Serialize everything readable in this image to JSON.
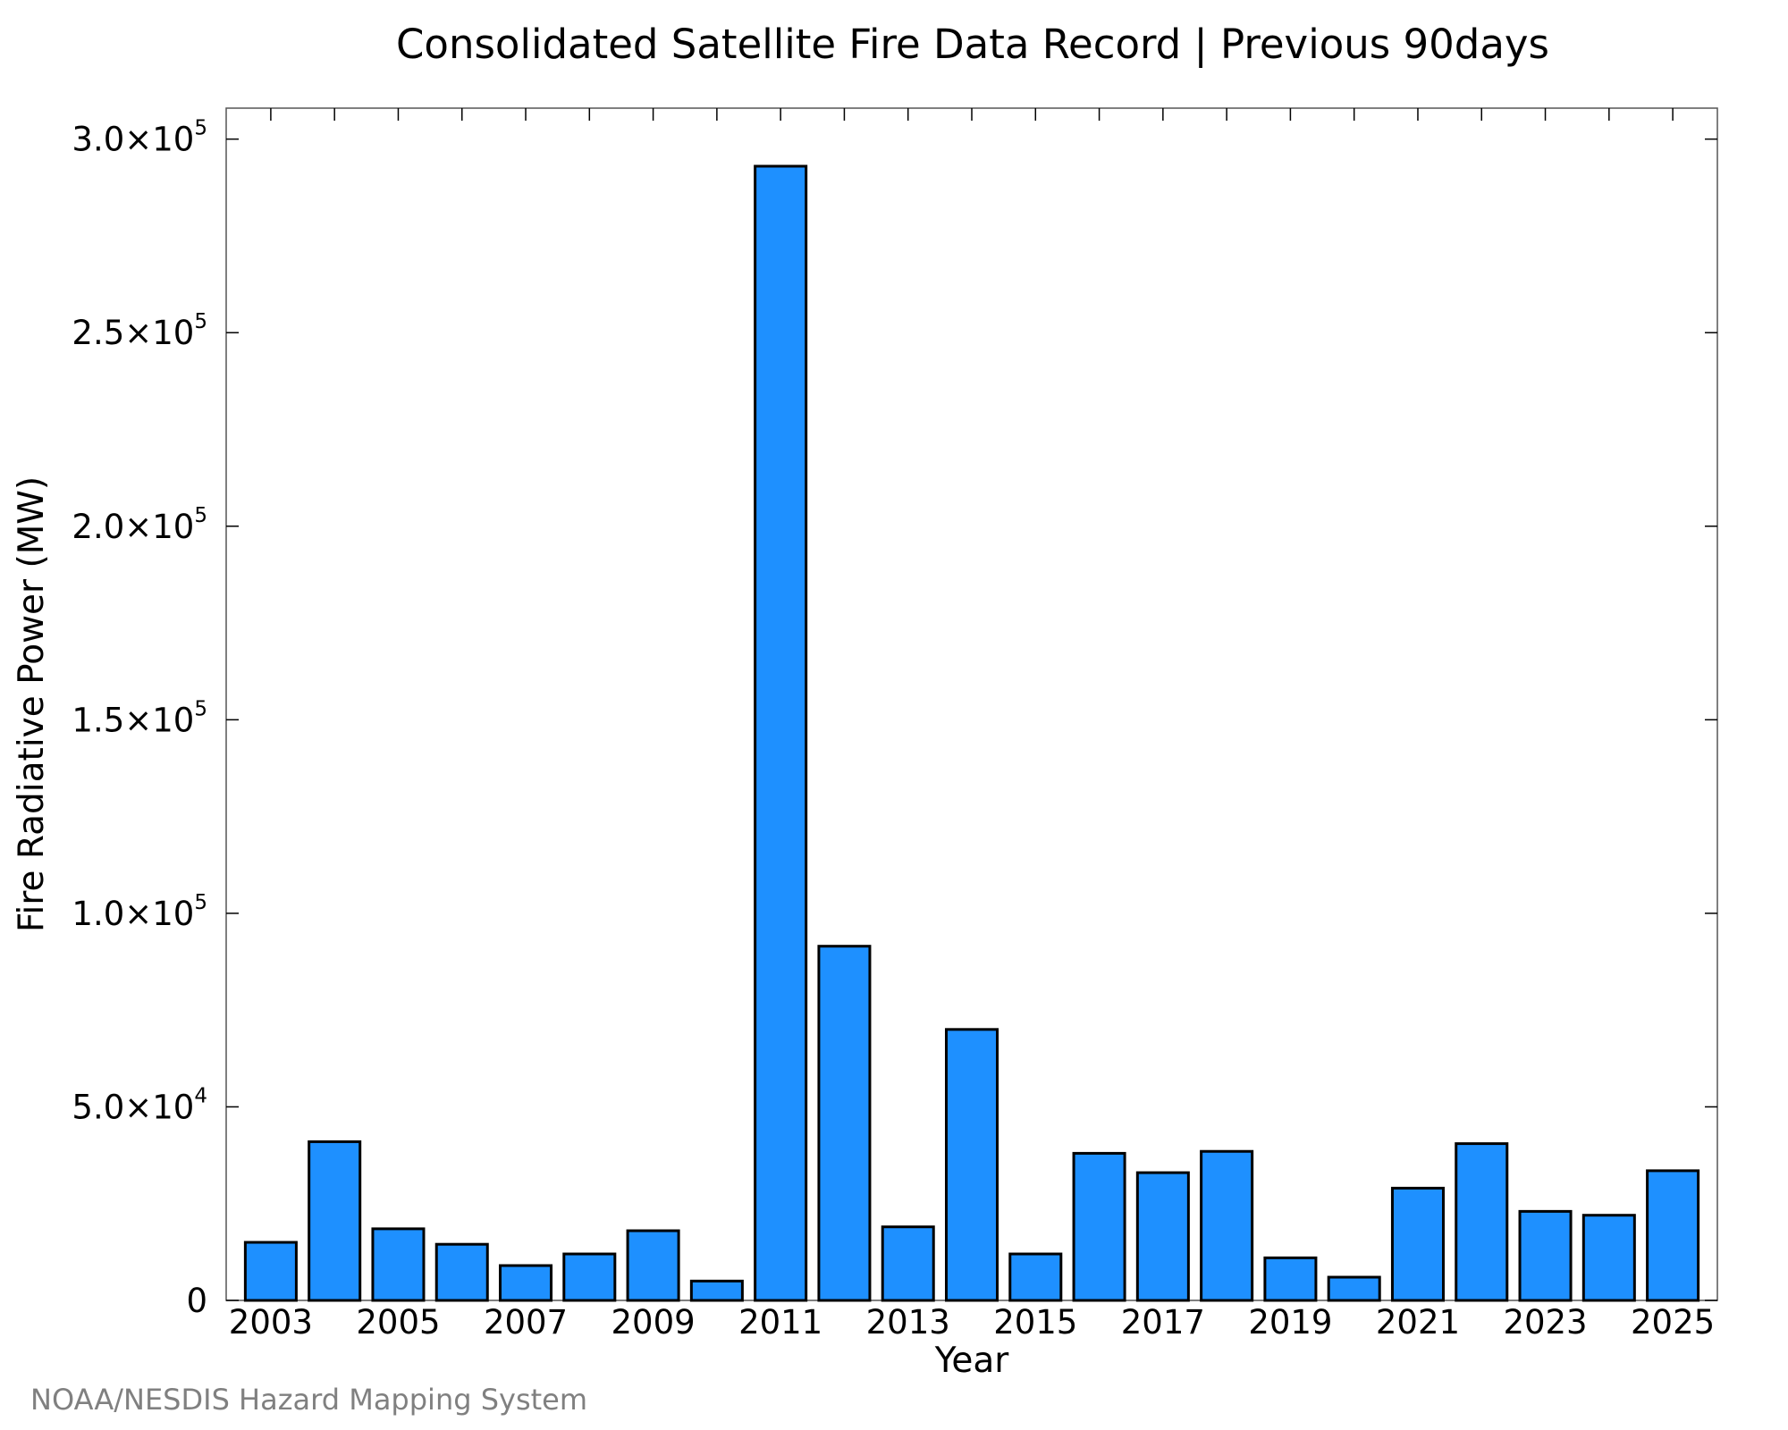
{
  "chart_data": {
    "type": "bar",
    "title": "Consolidated Satellite Fire Data Record | Previous 90days",
    "xlabel": "Year",
    "ylabel": "Fire Radiative Power (MW)",
    "categories": [
      "2003",
      "2004",
      "2005",
      "2006",
      "2007",
      "2008",
      "2009",
      "2010",
      "2011",
      "2012",
      "2013",
      "2014",
      "2015",
      "2016",
      "2017",
      "2018",
      "2019",
      "2020",
      "2021",
      "2022",
      "2023",
      "2024",
      "2025"
    ],
    "values": [
      15000,
      41000,
      18500,
      14500,
      9000,
      12000,
      18000,
      5000,
      293000,
      91500,
      19000,
      70000,
      12000,
      38000,
      33000,
      38500,
      11000,
      6000,
      29000,
      40500,
      23000,
      22000,
      33500
    ],
    "ylim": [
      0,
      308000
    ],
    "x_tick_labels": [
      "2003",
      "2005",
      "2007",
      "2009",
      "2011",
      "2013",
      "2015",
      "2017",
      "2019",
      "2021",
      "2023",
      "2025"
    ],
    "y_ticks": [
      {
        "value": 0,
        "mantissa": "0",
        "exponent": ""
      },
      {
        "value": 50000,
        "mantissa": "5.0×10",
        "exponent": "4"
      },
      {
        "value": 100000,
        "mantissa": "1.0×10",
        "exponent": "5"
      },
      {
        "value": 150000,
        "mantissa": "1.5×10",
        "exponent": "5"
      },
      {
        "value": 200000,
        "mantissa": "2.0×10",
        "exponent": "5"
      },
      {
        "value": 250000,
        "mantissa": "2.5×10",
        "exponent": "5"
      },
      {
        "value": 300000,
        "mantissa": "3.0×10",
        "exponent": "5"
      }
    ],
    "bar_color": "#1e90ff",
    "bar_edge_color": "#000000",
    "grid": false,
    "legend": "none"
  },
  "credit": "NOAA/NESDIS Hazard Mapping System"
}
